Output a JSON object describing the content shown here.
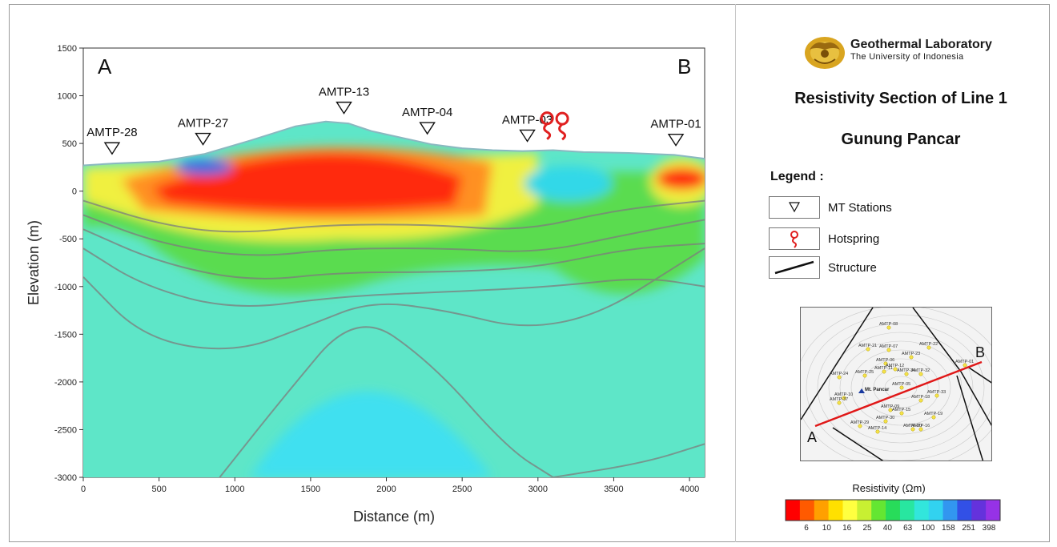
{
  "chart_data": {
    "type": "heatmap",
    "xlabel": "Distance (m)",
    "ylabel": "Elevation (m)",
    "xlim": [
      0,
      4100
    ],
    "ylim": [
      -3000,
      1500
    ],
    "x_ticks": [
      0,
      500,
      1000,
      1500,
      2000,
      2500,
      3000,
      3500,
      4000
    ],
    "y_ticks": [
      1500,
      1000,
      500,
      0,
      -500,
      -1000,
      -1500,
      -2000,
      -2500,
      -3000
    ],
    "corner_labels": {
      "left": "A",
      "right": "B"
    },
    "topography": [
      [
        0,
        270
      ],
      [
        200,
        290
      ],
      [
        500,
        310
      ],
      [
        800,
        390
      ],
      [
        1100,
        530
      ],
      [
        1400,
        680
      ],
      [
        1600,
        730
      ],
      [
        1750,
        710
      ],
      [
        1900,
        630
      ],
      [
        2100,
        560
      ],
      [
        2300,
        490
      ],
      [
        2500,
        450
      ],
      [
        2700,
        430
      ],
      [
        2900,
        420
      ],
      [
        3100,
        430
      ],
      [
        3300,
        410
      ],
      [
        3600,
        400
      ],
      [
        3900,
        380
      ],
      [
        4100,
        340
      ]
    ],
    "stations": [
      {
        "name": "AMTP-28",
        "x": 190
      },
      {
        "name": "AMTP-27",
        "x": 790
      },
      {
        "name": "AMTP-13",
        "x": 1720
      },
      {
        "name": "AMTP-04",
        "x": 2270
      },
      {
        "name": "AMTP-03",
        "x": 2930
      },
      {
        "name": "AMTP-01",
        "x": 3910
      }
    ],
    "hotsprings": [
      {
        "x": 3060
      },
      {
        "x": 3160
      }
    ],
    "colorbar": {
      "title": "Resistivity (Ωm)",
      "tick_labels": [
        "6",
        "10",
        "16",
        "25",
        "40",
        "63",
        "100",
        "158",
        "251",
        "398"
      ],
      "colors": [
        "#ff0000",
        "#ff5a00",
        "#ffa000",
        "#ffe000",
        "#ffff40",
        "#c8f032",
        "#64e632",
        "#28dc5a",
        "#28e6a0",
        "#32e6dc",
        "#32d2f0",
        "#3296f0",
        "#3250e6",
        "#6432dc",
        "#9632e6"
      ]
    },
    "background_color": "#5ee6c8"
  },
  "panel": {
    "lab_name": "Geothermal Laboratory",
    "lab_university": "The University of Indonesia",
    "title_line1": "Resistivity Section of Line 1",
    "title_line2": "Gunung Pancar",
    "legend_title": "Legend :",
    "legend_items": [
      {
        "label": "MT Stations",
        "icon": "triangle-down-icon"
      },
      {
        "label": "Hotspring",
        "icon": "hotspring-icon",
        "color": "#e02020"
      },
      {
        "label": "Structure",
        "icon": "line-icon"
      }
    ]
  },
  "location_map": {
    "corner_labels": {
      "start": "A",
      "end": "B"
    },
    "line_color": "#e01818",
    "summit_label": "Mt. Pancar",
    "stations": [
      "AMTP-08",
      "AMTP-21",
      "AMTP-07",
      "AMTP-22",
      "AMTP-23",
      "AMTP-06",
      "AMTP-12",
      "AMTP-11",
      "AMTP-25",
      "AMTP-34",
      "AMTP-32",
      "AMTP-24",
      "AMTP-05",
      "AMTP-10",
      "AMTP-37",
      "AMTP-33",
      "AMTP-18",
      "AMTP-09",
      "AMTP-15",
      "AMTP-19",
      "AMTP-29",
      "AMTP-30",
      "AMTP-14",
      "AMTP-20",
      "AMTP-16",
      "AMTP-01"
    ]
  }
}
